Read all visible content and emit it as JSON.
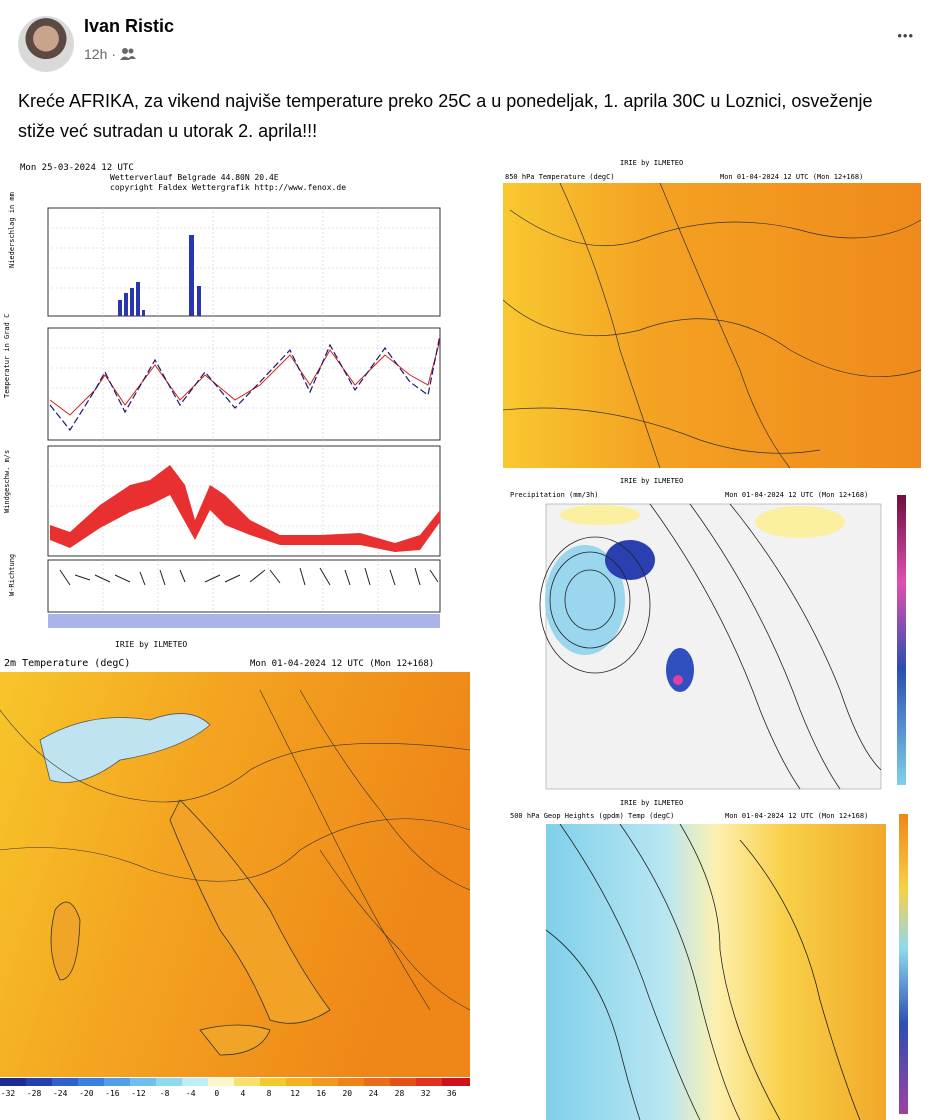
{
  "post": {
    "author": "Ivan Ristic",
    "time": "12h",
    "separator": "·",
    "more": "•••",
    "text": "Kreće AFRIKA, za vikend najviše temperature preko 25C a u ponedeljak, 1. aprila 30C u Loznici, osveženje stiže već sutradan u utorak 2. aprila!!!"
  },
  "images": {
    "meteogram": {
      "date": "Mon 25-03-2024 12 UTC",
      "location": "Wetterverlauf Belgrade   44.80N 20.4E",
      "copyright": "copyright Faldex Wettergrafik http://www.fenox.de",
      "panel_labels": [
        "Niederschlag in mm",
        "Temperatur in Grad C",
        "Windgeschw. m/s",
        "W-Richtung"
      ]
    },
    "temp2m": {
      "source": "IRIE by ILMETEO",
      "title": "2m Temperature (degC)",
      "date": "Mon 01-04-2024 12 UTC (Mon 12+168)",
      "scale": [
        "-32",
        "-28",
        "-24",
        "-20",
        "-16",
        "-12",
        "-8",
        "-4",
        "0",
        "4",
        "8",
        "12",
        "16",
        "20",
        "24",
        "28",
        "32",
        "36"
      ]
    },
    "t850": {
      "source": "IRIE by ILMETEO",
      "title": "850 hPa Temperature (degC)",
      "date": "Mon 01-04-2024 12 UTC (Mon 12+168)"
    },
    "precip": {
      "source": "IRIE by ILMETEO",
      "title": "Precipitation (mm/3h)",
      "date": "Mon 01-04-2024 12 UTC (Mon 12+168)"
    },
    "z500": {
      "source": "IRIE by ILMETEO",
      "title": "500 hPa Geop Heights (gpdm) Temp (degC)",
      "date": "Mon 01-04-2024 12 UTC (Mon 12+168)"
    }
  }
}
